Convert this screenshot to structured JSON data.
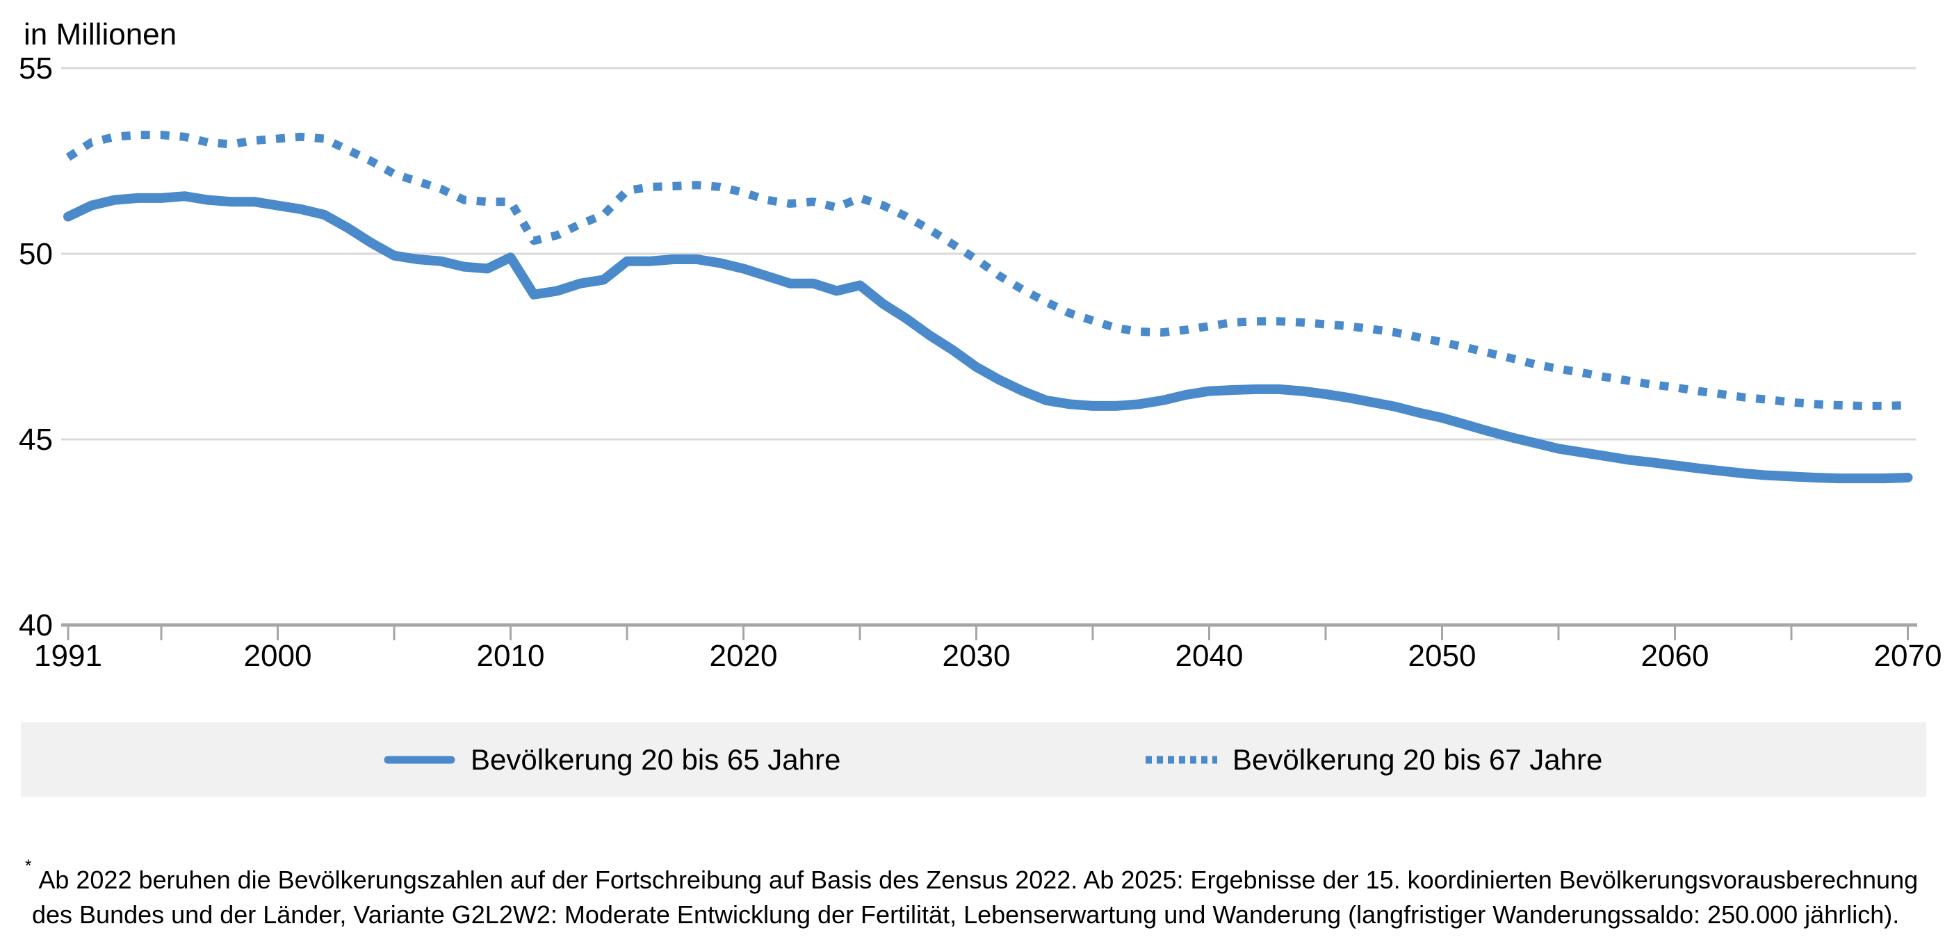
{
  "colors": {
    "line_blue": "#4A8ACA",
    "gridline": "#D9D9D9",
    "axis": "#A6A6A6",
    "legend_background": "#F1F1F1",
    "text": "#000000"
  },
  "legend": {
    "items": [
      {
        "label": "Bevölkerung 20 bis 65 Jahre",
        "style": "solid"
      },
      {
        "label": "Bevölkerung 20 bis 67 Jahre",
        "style": "dotted"
      }
    ]
  },
  "footnote": {
    "marker": "*",
    "line1": "Ab 2022 beruhen die Bevölkerungszahlen auf der Fortschreibung auf Basis des Zensus 2022. Ab 2025: Ergebnisse der 15. koordinierten Bevölkerungsvorausberechnung",
    "line2": "des Bundes und der Länder, Variante G2L2W2: Moderate Entwicklung der Fertilität, Lebenserwartung und Wanderung (langfristiger Wanderungssaldo: 250.000 jährlich)."
  },
  "chart_data": {
    "type": "line",
    "unit_label": "in Millionen",
    "x_axis": {
      "start_year": 1991,
      "end_year": 2070,
      "tick_labels": [
        "1991",
        "2000",
        "2010",
        "2020",
        "2030",
        "2040",
        "2050",
        "2060",
        "2070"
      ],
      "minor_tick_years": [
        1991,
        1995,
        2000,
        2005,
        2010,
        2015,
        2020,
        2025,
        2030,
        2035,
        2040,
        2045,
        2050,
        2055,
        2060,
        2065,
        2070
      ]
    },
    "y_axis": {
      "min": 40,
      "max": 55,
      "tick_labels": [
        "55",
        "50",
        "45",
        "40"
      ],
      "gridline_values": [
        55,
        50,
        45
      ],
      "baseline_value": 40
    },
    "series": [
      {
        "name": "Bevölkerung 20 bis 65 Jahre",
        "style": "solid",
        "color": "#4A8ACA",
        "years_start": 1991,
        "values": [
          51.0,
          51.3,
          51.45,
          51.5,
          51.5,
          51.55,
          51.45,
          51.4,
          51.4,
          51.3,
          51.2,
          51.05,
          50.7,
          50.3,
          49.95,
          49.85,
          49.8,
          49.65,
          49.6,
          49.9,
          48.9,
          49.0,
          49.2,
          49.3,
          49.8,
          49.8,
          49.85,
          49.85,
          49.75,
          49.6,
          49.4,
          49.2,
          49.2,
          49.0,
          49.15,
          48.65,
          48.25,
          47.8,
          47.4,
          46.95,
          46.6,
          46.3,
          46.05,
          45.95,
          45.9,
          45.9,
          45.95,
          46.05,
          46.2,
          46.3,
          46.33,
          46.35,
          46.35,
          46.3,
          46.22,
          46.12,
          46.0,
          45.88,
          45.72,
          45.58,
          45.4,
          45.22,
          45.05,
          44.9,
          44.75,
          44.65,
          44.55,
          44.45,
          44.38,
          44.3,
          44.22,
          44.15,
          44.08,
          44.03,
          44.0,
          43.97,
          43.95,
          43.95,
          43.95,
          43.97
        ]
      },
      {
        "name": "Bevölkerung 20 bis 67 Jahre",
        "style": "dotted",
        "color": "#4A8ACA",
        "years_start": 1991,
        "values": [
          52.6,
          53.0,
          53.15,
          53.2,
          53.2,
          53.15,
          53.0,
          52.95,
          53.05,
          53.1,
          53.15,
          53.1,
          52.8,
          52.5,
          52.15,
          51.95,
          51.75,
          51.45,
          51.4,
          51.4,
          50.35,
          50.5,
          50.8,
          51.05,
          51.7,
          51.8,
          51.82,
          51.85,
          51.8,
          51.65,
          51.45,
          51.35,
          51.4,
          51.25,
          51.5,
          51.3,
          51.0,
          50.65,
          50.25,
          49.85,
          49.4,
          49.03,
          48.7,
          48.4,
          48.2,
          48.0,
          47.9,
          47.88,
          47.95,
          48.05,
          48.15,
          48.18,
          48.18,
          48.15,
          48.1,
          48.05,
          47.97,
          47.88,
          47.75,
          47.62,
          47.48,
          47.33,
          47.18,
          47.02,
          46.9,
          46.8,
          46.68,
          46.58,
          46.48,
          46.4,
          46.3,
          46.22,
          46.13,
          46.07,
          46.0,
          45.95,
          45.92,
          45.9,
          45.9,
          45.92
        ]
      }
    ]
  }
}
